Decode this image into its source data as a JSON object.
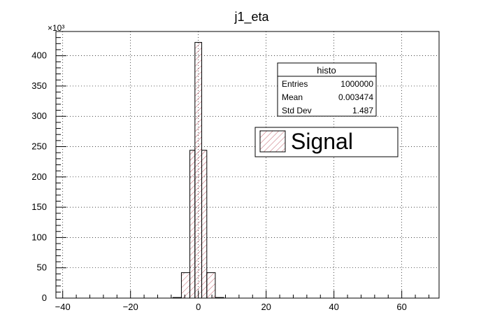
{
  "chart_data": {
    "type": "bar",
    "title": "j1_eta",
    "xlabel": "",
    "ylabel": "",
    "y_multiplier_label": "×10³",
    "xlim": [
      -42,
      71
    ],
    "ylim": [
      0,
      440
    ],
    "x_ticks": [
      -40,
      -20,
      0,
      20,
      40,
      60
    ],
    "y_ticks": [
      0,
      50,
      100,
      150,
      200,
      250,
      300,
      350,
      400
    ],
    "grid": true,
    "series": [
      {
        "name": "Signal",
        "bins": [
          {
            "low": -7.5,
            "high": -5,
            "value": 1
          },
          {
            "low": -5,
            "high": -2.5,
            "value": 42
          },
          {
            "low": -2.5,
            "high": -1,
            "value": 244
          },
          {
            "low": -1,
            "high": 1,
            "value": 422
          },
          {
            "low": 1,
            "high": 2.5,
            "value": 244
          },
          {
            "low": 2.5,
            "high": 5,
            "value": 42
          },
          {
            "low": 5,
            "high": 7.5,
            "value": 1
          }
        ]
      }
    ],
    "stats_box": {
      "title": "histo",
      "rows": [
        {
          "label": "Entries",
          "value": "1000000"
        },
        {
          "label": "Mean",
          "value": "0.003474"
        },
        {
          "label": "Std Dev",
          "value": "1.487"
        }
      ]
    },
    "legend": {
      "entries": [
        "Signal"
      ],
      "placement": "top-right"
    },
    "colors": {
      "hist_line": "#000000",
      "hatch": "#b03040"
    }
  }
}
